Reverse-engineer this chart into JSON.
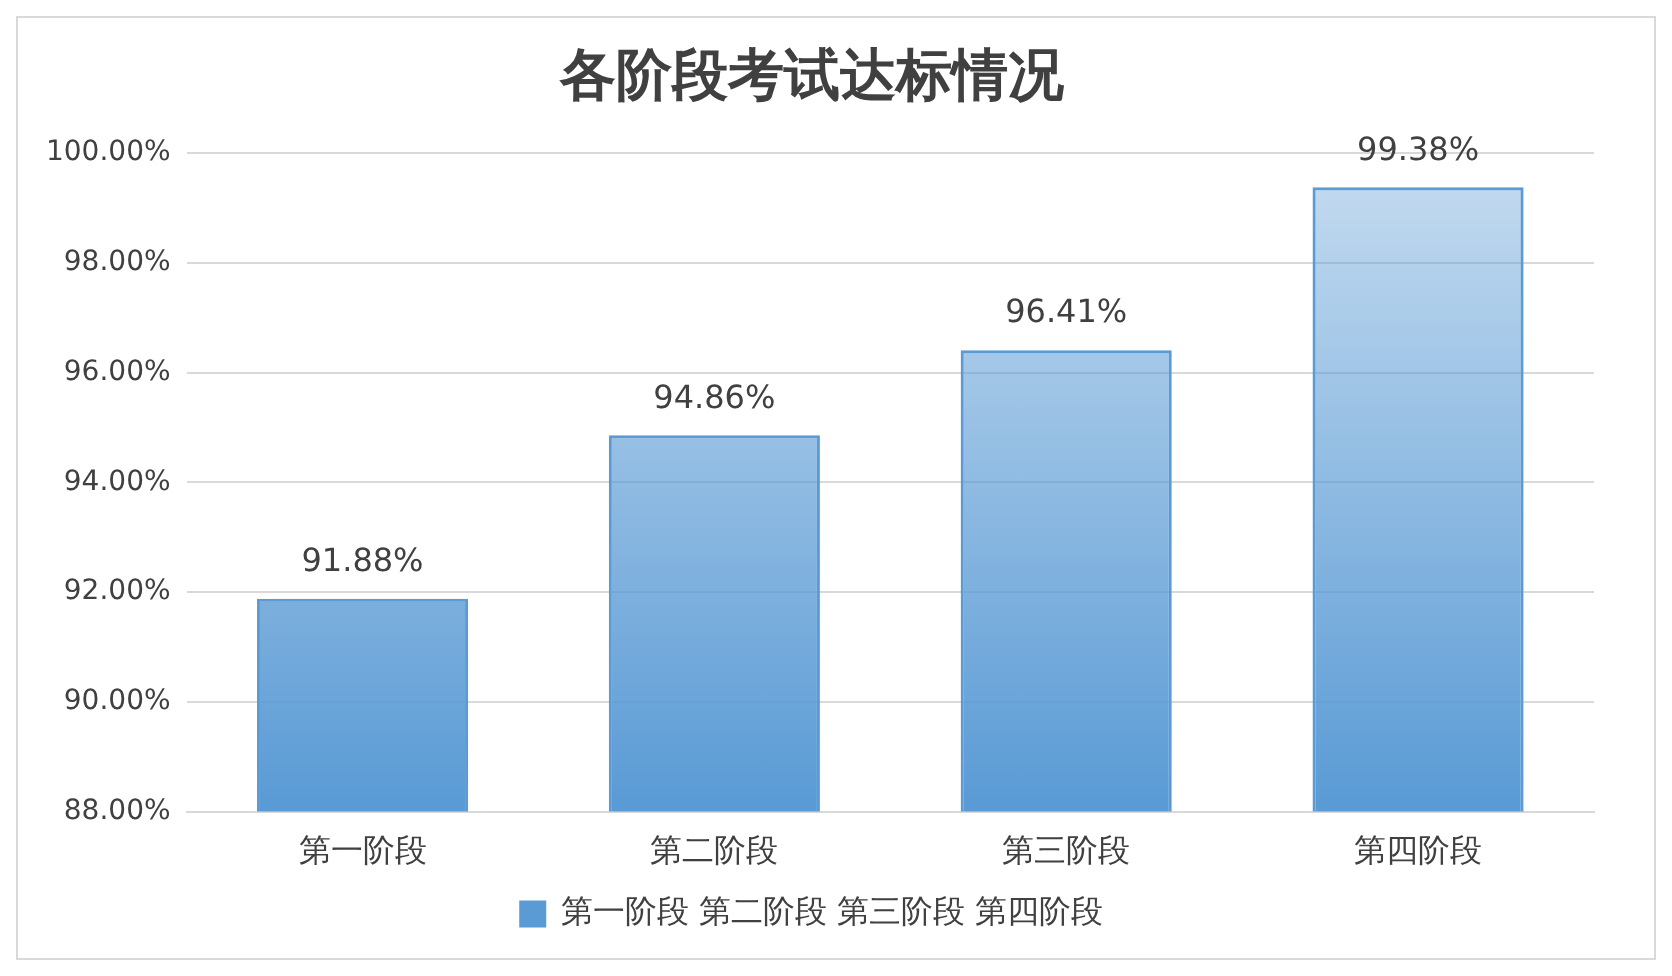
{
  "chart_data": {
    "type": "bar",
    "title": "各阶段考试达标情况",
    "categories": [
      "第一阶段",
      "第二阶段",
      "第三阶段",
      "第四阶段"
    ],
    "series": [
      {
        "name": "第一阶段 第二阶段 第三阶段 第四阶段",
        "color": "#5b9bd5",
        "values": [
          91.88,
          94.86,
          96.41,
          99.38
        ],
        "value_labels": [
          "91.88%",
          "94.86%",
          "96.41%",
          "99.38%"
        ]
      }
    ],
    "ylim": [
      88,
      100
    ],
    "yticks": [
      {
        "value": 88,
        "label": "88.00%"
      },
      {
        "value": 90,
        "label": "90.00%"
      },
      {
        "value": 92,
        "label": "92.00%"
      },
      {
        "value": 94,
        "label": "94.00%"
      },
      {
        "value": 96,
        "label": "96.00%"
      },
      {
        "value": 98,
        "label": "98.00%"
      },
      {
        "value": 100,
        "label": "100.00%"
      }
    ],
    "grid": "y",
    "legend": "bottom"
  }
}
